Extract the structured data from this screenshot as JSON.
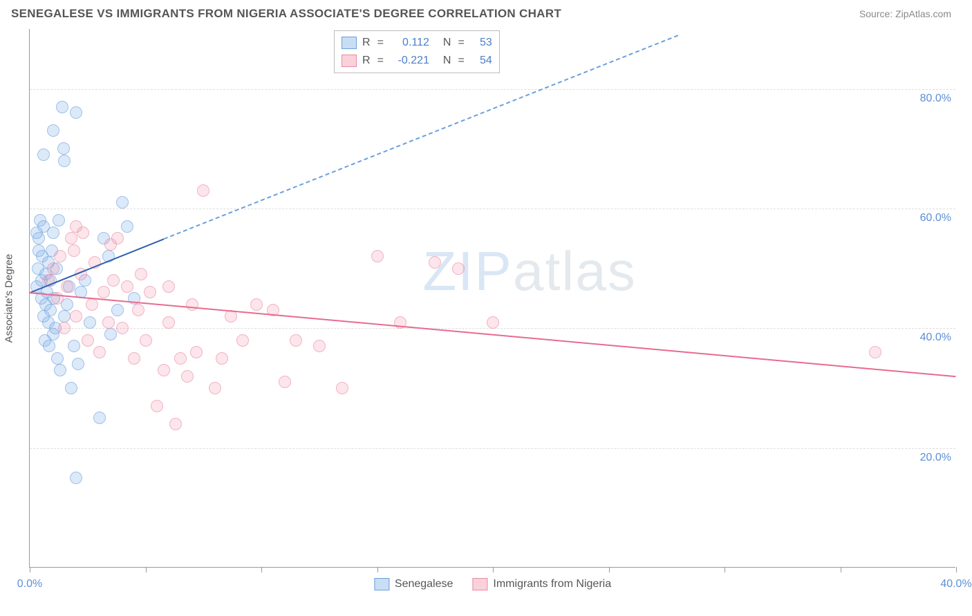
{
  "header": {
    "title": "SENEGALESE VS IMMIGRANTS FROM NIGERIA ASSOCIATE'S DEGREE CORRELATION CHART",
    "source": "Source: ZipAtlas.com"
  },
  "watermark": {
    "part1": "ZIP",
    "part2": "atlas"
  },
  "chart": {
    "type": "scatter",
    "y_axis_title": "Associate's Degree",
    "background_color": "#ffffff",
    "grid_color": "#dddddd",
    "axis_color": "#999999",
    "xlim": [
      0,
      40
    ],
    "ylim": [
      0,
      90
    ],
    "x_ticks": [
      0,
      5,
      10,
      15,
      20,
      25,
      30,
      35,
      40
    ],
    "x_tick_labels": {
      "0": "0.0%",
      "40": "40.0%"
    },
    "y_gridlines": [
      20,
      40,
      60,
      80
    ],
    "y_tick_labels": {
      "20": "20.0%",
      "40": "40.0%",
      "60": "60.0%",
      "80": "80.0%"
    },
    "label_color": "#5b8fd6",
    "label_fontsize": 16,
    "series": [
      {
        "name": "Senegalese",
        "color_fill": "rgba(120,170,230,0.4)",
        "color_border": "#6a9fdc",
        "R": "0.112",
        "N": "53",
        "trend": {
          "x1": 0,
          "y1": 46,
          "x2": 5.8,
          "y2": 55,
          "color": "#2d5fb0",
          "extend_dash_to_x": 28,
          "extend_dash_to_y": 89
        },
        "points": [
          [
            0.3,
            47
          ],
          [
            0.35,
            50
          ],
          [
            0.4,
            53
          ],
          [
            0.4,
            55
          ],
          [
            0.45,
            58
          ],
          [
            0.5,
            45
          ],
          [
            0.5,
            48
          ],
          [
            0.55,
            52
          ],
          [
            0.6,
            42
          ],
          [
            0.6,
            57
          ],
          [
            0.65,
            38
          ],
          [
            0.7,
            44
          ],
          [
            0.7,
            49
          ],
          [
            0.75,
            46
          ],
          [
            0.8,
            41
          ],
          [
            0.8,
            51
          ],
          [
            0.85,
            37
          ],
          [
            0.9,
            43
          ],
          [
            0.9,
            48
          ],
          [
            0.95,
            53
          ],
          [
            1.0,
            39
          ],
          [
            1.0,
            56
          ],
          [
            1.05,
            45
          ],
          [
            1.1,
            40
          ],
          [
            1.15,
            50
          ],
          [
            1.2,
            35
          ],
          [
            1.25,
            58
          ],
          [
            1.3,
            33
          ],
          [
            1.4,
            77
          ],
          [
            1.45,
            70
          ],
          [
            1.5,
            68
          ],
          [
            1.5,
            42
          ],
          [
            1.6,
            44
          ],
          [
            1.7,
            47
          ],
          [
            1.8,
            30
          ],
          [
            1.9,
            37
          ],
          [
            2.0,
            76
          ],
          [
            2.1,
            34
          ],
          [
            2.2,
            46
          ],
          [
            2.4,
            48
          ],
          [
            2.6,
            41
          ],
          [
            3.0,
            25
          ],
          [
            3.2,
            55
          ],
          [
            3.4,
            52
          ],
          [
            3.5,
            39
          ],
          [
            3.8,
            43
          ],
          [
            4.0,
            61
          ],
          [
            4.2,
            57
          ],
          [
            4.5,
            45
          ],
          [
            2.0,
            15
          ],
          [
            0.6,
            69
          ],
          [
            1.0,
            73
          ],
          [
            0.3,
            56
          ]
        ]
      },
      {
        "name": "Immigrants from Nigeria",
        "color_fill": "rgba(240,140,165,0.35)",
        "color_border": "#e98aa4",
        "R": "-0.221",
        "N": "54",
        "trend": {
          "x1": 0,
          "y1": 46,
          "x2": 40,
          "y2": 32,
          "color": "#e86a8e"
        },
        "points": [
          [
            0.8,
            48
          ],
          [
            1.0,
            50
          ],
          [
            1.2,
            45
          ],
          [
            1.3,
            52
          ],
          [
            1.5,
            40
          ],
          [
            1.6,
            47
          ],
          [
            1.8,
            55
          ],
          [
            2.0,
            42
          ],
          [
            2.2,
            49
          ],
          [
            2.3,
            56
          ],
          [
            2.5,
            38
          ],
          [
            2.7,
            44
          ],
          [
            2.8,
            51
          ],
          [
            3.0,
            36
          ],
          [
            3.2,
            46
          ],
          [
            3.4,
            41
          ],
          [
            3.6,
            48
          ],
          [
            3.8,
            55
          ],
          [
            4.0,
            40
          ],
          [
            4.2,
            47
          ],
          [
            4.5,
            35
          ],
          [
            4.7,
            43
          ],
          [
            5.0,
            38
          ],
          [
            5.2,
            46
          ],
          [
            5.5,
            27
          ],
          [
            5.8,
            33
          ],
          [
            6.0,
            41
          ],
          [
            6.3,
            24
          ],
          [
            6.5,
            35
          ],
          [
            6.8,
            32
          ],
          [
            7.0,
            44
          ],
          [
            7.5,
            63
          ],
          [
            8.0,
            30
          ],
          [
            8.3,
            35
          ],
          [
            8.7,
            42
          ],
          [
            9.2,
            38
          ],
          [
            9.8,
            44
          ],
          [
            10.5,
            43
          ],
          [
            11.0,
            31
          ],
          [
            11.5,
            38
          ],
          [
            12.5,
            37
          ],
          [
            13.5,
            30
          ],
          [
            15.0,
            52
          ],
          [
            16.0,
            41
          ],
          [
            17.5,
            51
          ],
          [
            18.5,
            50
          ],
          [
            20.0,
            41
          ],
          [
            36.5,
            36
          ],
          [
            2.0,
            57
          ],
          [
            3.5,
            54
          ],
          [
            1.9,
            53
          ],
          [
            6.0,
            47
          ],
          [
            4.8,
            49
          ],
          [
            7.2,
            36
          ]
        ]
      }
    ],
    "bottom_legend": [
      {
        "swatch": "s1",
        "label": "Senegalese"
      },
      {
        "swatch": "s2",
        "label": "Immigrants from Nigeria"
      }
    ]
  }
}
